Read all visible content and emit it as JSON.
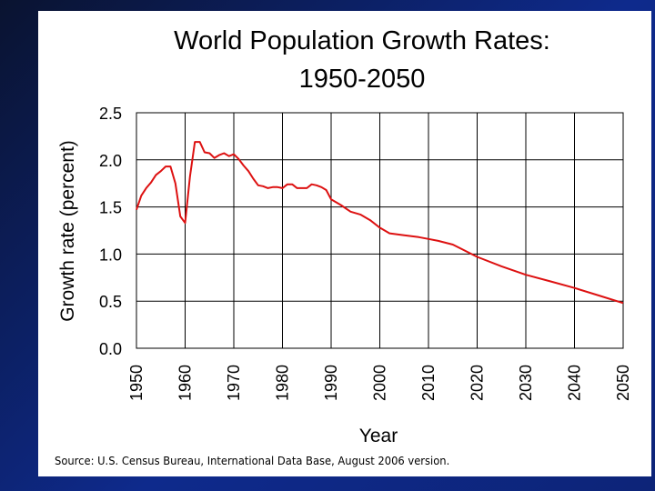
{
  "chart_data": {
    "type": "line",
    "title_lines": [
      "World Population Growth Rates:",
      "1950-2050"
    ],
    "xlabel": "Year",
    "ylabel": "Growth rate (percent)",
    "xlim": [
      1950,
      2050
    ],
    "ylim": [
      0,
      2.5
    ],
    "x_ticks": [
      "1950",
      "1960",
      "1970",
      "1980",
      "1990",
      "2000",
      "2010",
      "2020",
      "2030",
      "2040",
      "2050"
    ],
    "y_ticks": [
      "0.0",
      "0.5",
      "1.0",
      "1.5",
      "2.0",
      "2.5"
    ],
    "grid": true,
    "series": [
      {
        "name": "Growth rate",
        "color": "#dd1111",
        "x": [
          1950,
          1951,
          1952,
          1953,
          1954,
          1955,
          1956,
          1957,
          1958,
          1959,
          1960,
          1961,
          1962,
          1963,
          1964,
          1965,
          1966,
          1967,
          1968,
          1969,
          1970,
          1971,
          1972,
          1973,
          1974,
          1975,
          1976,
          1977,
          1978,
          1979,
          1980,
          1981,
          1982,
          1983,
          1984,
          1985,
          1986,
          1987,
          1988,
          1989,
          1990,
          1992,
          1994,
          1996,
          1998,
          2000,
          2002,
          2005,
          2008,
          2010,
          2012,
          2015,
          2020,
          2025,
          2030,
          2035,
          2040,
          2045,
          2050
        ],
        "values": [
          1.47,
          1.62,
          1.7,
          1.76,
          1.84,
          1.88,
          1.93,
          1.93,
          1.75,
          1.4,
          1.33,
          1.82,
          2.19,
          2.19,
          2.08,
          2.07,
          2.02,
          2.05,
          2.07,
          2.04,
          2.06,
          2.01,
          1.94,
          1.88,
          1.8,
          1.73,
          1.72,
          1.7,
          1.71,
          1.71,
          1.7,
          1.74,
          1.74,
          1.7,
          1.7,
          1.7,
          1.74,
          1.73,
          1.71,
          1.68,
          1.58,
          1.52,
          1.45,
          1.42,
          1.36,
          1.28,
          1.22,
          1.2,
          1.18,
          1.16,
          1.14,
          1.1,
          0.97,
          0.87,
          0.78,
          0.71,
          0.64,
          0.56,
          0.48
        ]
      }
    ]
  },
  "source_note": "Source: U.S. Census Bureau, International Data Base, August 2006 version."
}
